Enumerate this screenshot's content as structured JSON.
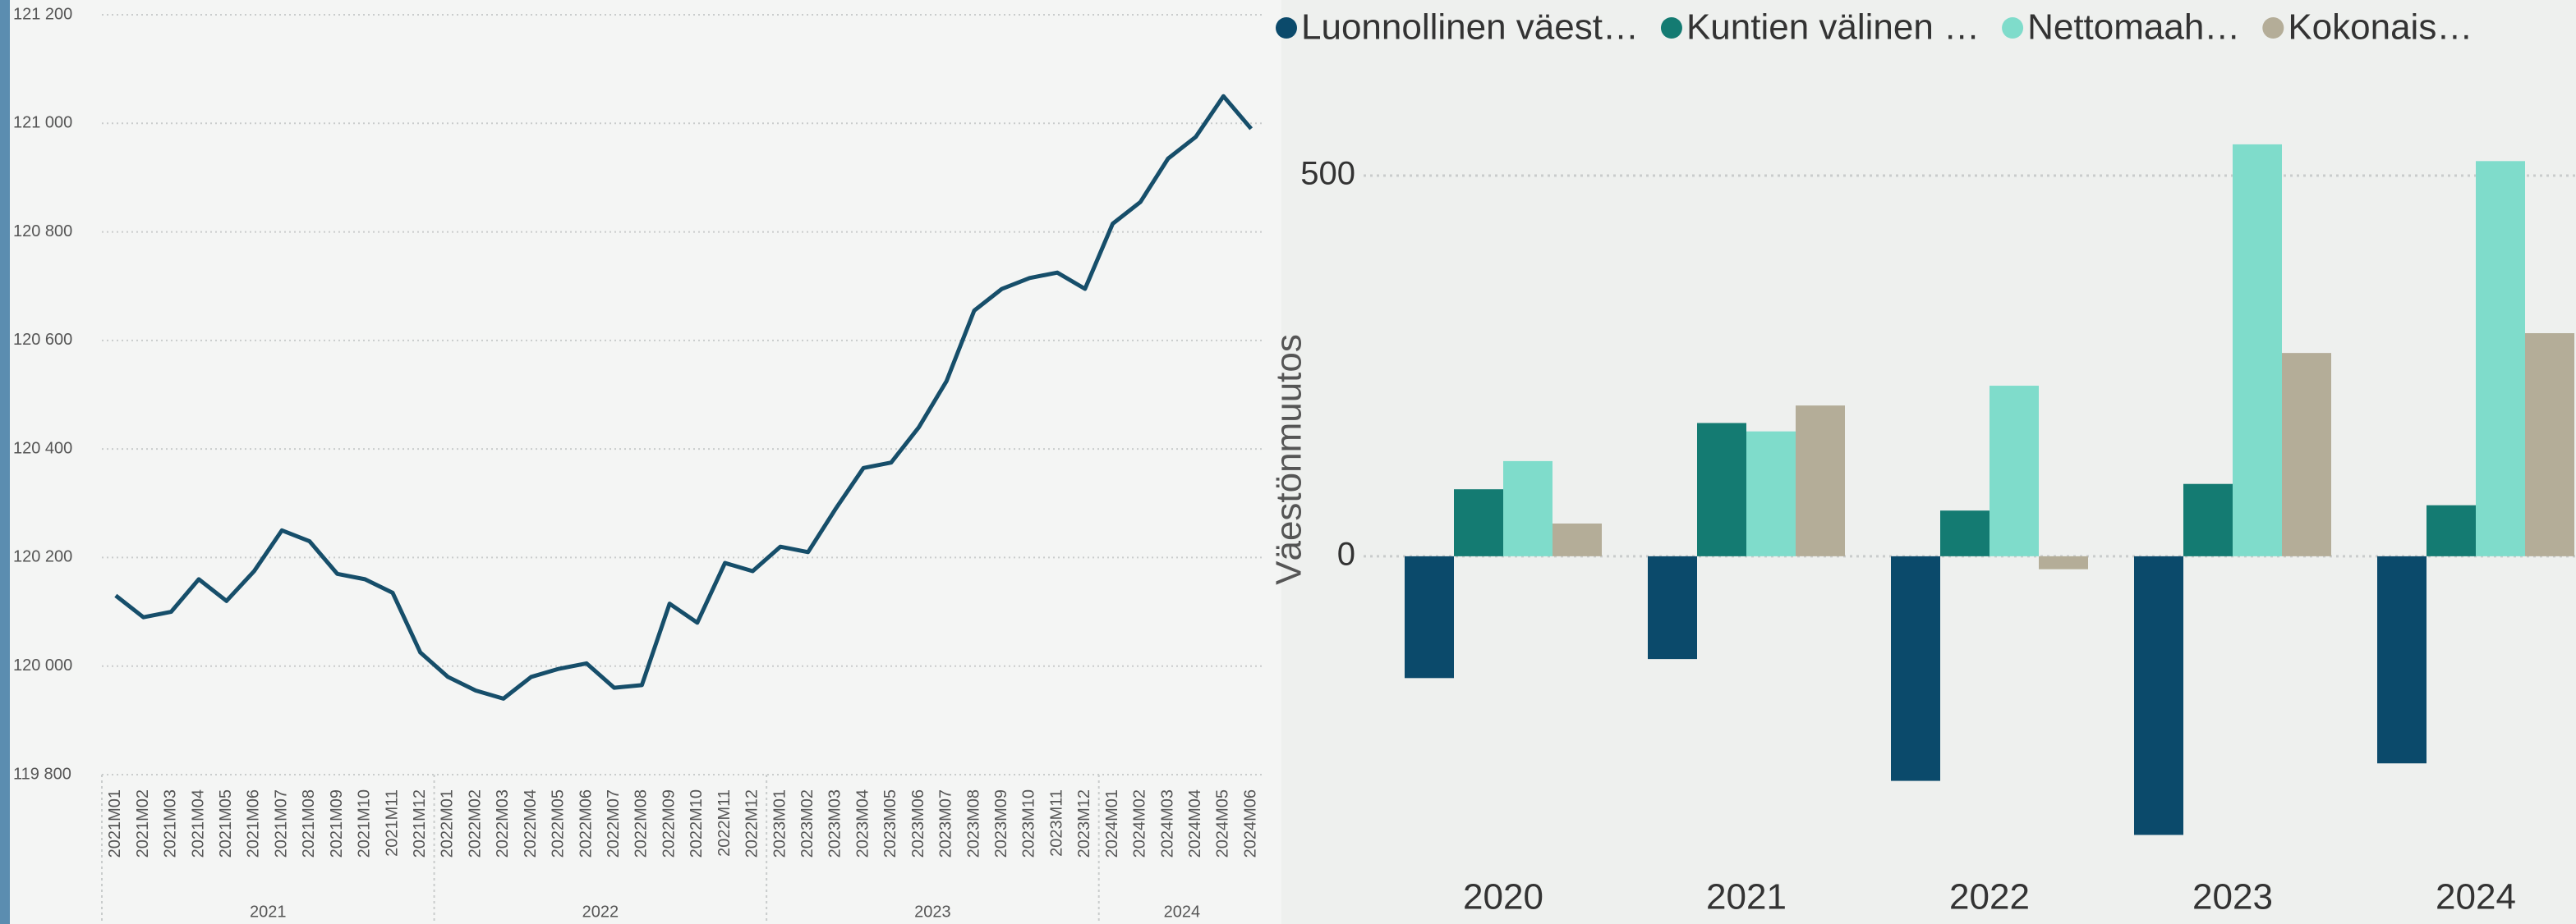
{
  "chart_data": [
    {
      "type": "line",
      "categories": [
        "2021M01",
        "2021M02",
        "2021M03",
        "2021M04",
        "2021M05",
        "2021M06",
        "2021M07",
        "2021M08",
        "2021M09",
        "2021M10",
        "2021M11",
        "2021M12",
        "2022M01",
        "2022M02",
        "2022M03",
        "2022M04",
        "2022M05",
        "2022M06",
        "2022M07",
        "2022M08",
        "2022M09",
        "2022M10",
        "2022M11",
        "2022M12",
        "2023M01",
        "2023M02",
        "2023M03",
        "2023M04",
        "2023M05",
        "2023M06",
        "2023M07",
        "2023M08",
        "2023M09",
        "2023M10",
        "2023M11",
        "2023M12",
        "2024M01",
        "2024M02",
        "2024M03",
        "2024M04",
        "2024M05",
        "2024M06"
      ],
      "values": [
        120130,
        120090,
        120100,
        120160,
        120120,
        120175,
        120250,
        120230,
        120170,
        120160,
        120135,
        120025,
        119980,
        119955,
        119940,
        119980,
        119995,
        120005,
        119960,
        119965,
        120115,
        120080,
        120190,
        120175,
        120220,
        120210,
        120290,
        120365,
        120375,
        120440,
        120525,
        120655,
        120695,
        120715,
        120725,
        120695,
        120815,
        120855,
        120935,
        120975,
        121050,
        120990
      ],
      "color": "#164e6a",
      "x_groups": [
        "2021",
        "2022",
        "2023",
        "2024"
      ],
      "ylim": [
        119800,
        121200
      ],
      "yticks": [
        {
          "value": 119800,
          "label": "119 800"
        },
        {
          "value": 120000,
          "label": "120 000"
        },
        {
          "value": 120200,
          "label": "120 200"
        },
        {
          "value": 120400,
          "label": "120 400"
        },
        {
          "value": 120600,
          "label": "120 600"
        },
        {
          "value": 120800,
          "label": "120 800"
        },
        {
          "value": 121000,
          "label": "121 000"
        },
        {
          "value": 121200,
          "label": "121 200"
        }
      ],
      "grid": true
    },
    {
      "type": "bar",
      "y_label": "Väestönmuutos",
      "categories": [
        "2020",
        "2021",
        "2022",
        "2023",
        "2024"
      ],
      "series": [
        {
          "name": "Luonnollinen väest…",
          "color": "#0b4a6b",
          "values": [
            -160,
            -135,
            -295,
            -366,
            -272
          ]
        },
        {
          "name": "Kuntien välinen …",
          "color": "#147b72",
          "values": [
            88,
            175,
            60,
            95,
            67
          ]
        },
        {
          "name": "Nettomaah…",
          "color": "#7fdccb",
          "values": [
            125,
            164,
            224,
            541,
            519
          ]
        },
        {
          "name": "Kokonais…",
          "color": "#b4ad98",
          "values": [
            43,
            198,
            -17,
            267,
            293
          ]
        }
      ],
      "ylim": [
        -400,
        570
      ],
      "yticks": [
        0,
        500
      ],
      "grid": true
    }
  ]
}
